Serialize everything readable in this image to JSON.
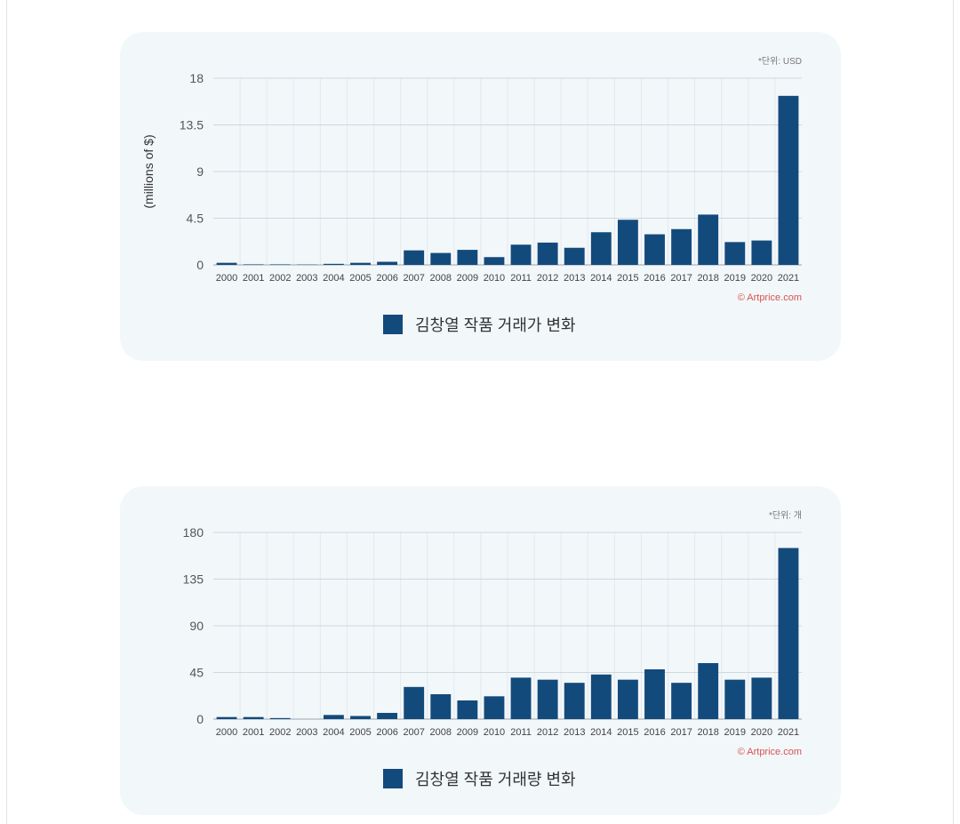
{
  "colors": {
    "bar": "#134a7c",
    "card_bg": "#f2f7fa",
    "source": "#d9534f"
  },
  "chart_data": [
    {
      "type": "bar",
      "unit_note": "*단위: USD",
      "ylabel": "(millions of $)",
      "ylim": [
        0,
        18
      ],
      "yticks": [
        "0",
        "4.5",
        "9",
        "13.5",
        "18"
      ],
      "ytick_values": [
        0,
        4.5,
        9,
        13.5,
        18
      ],
      "categories": [
        "2000",
        "2001",
        "2002",
        "2003",
        "2004",
        "2005",
        "2006",
        "2007",
        "2008",
        "2009",
        "2010",
        "2011",
        "2012",
        "2013",
        "2014",
        "2015",
        "2016",
        "2017",
        "2018",
        "2019",
        "2020",
        "2021"
      ],
      "values": [
        0.2,
        0.05,
        0.05,
        0.03,
        0.1,
        0.2,
        0.3,
        1.4,
        1.15,
        1.45,
        0.75,
        1.95,
        2.15,
        1.65,
        3.15,
        4.35,
        2.95,
        3.45,
        4.85,
        2.2,
        2.35,
        16.3
      ],
      "source": "© Artprice.com",
      "legend": "김창열 작품 거래가 변화"
    },
    {
      "type": "bar",
      "unit_note": "*단위: 개",
      "ylabel": "",
      "ylim": [
        0,
        180
      ],
      "yticks": [
        "0",
        "45",
        "90",
        "135",
        "180"
      ],
      "ytick_values": [
        0,
        45,
        90,
        135,
        180
      ],
      "categories": [
        "2000",
        "2001",
        "2002",
        "2003",
        "2004",
        "2005",
        "2006",
        "2007",
        "2008",
        "2009",
        "2010",
        "2011",
        "2012",
        "2013",
        "2014",
        "2015",
        "2016",
        "2017",
        "2018",
        "2019",
        "2020",
        "2021"
      ],
      "values": [
        2,
        2,
        1,
        0,
        4,
        3,
        6,
        31,
        24,
        18,
        22,
        40,
        38,
        35,
        43,
        38,
        48,
        35,
        54,
        38,
        40,
        165
      ],
      "source": "© Artprice.com",
      "legend": "김창열 작품 거래량 변화"
    }
  ]
}
